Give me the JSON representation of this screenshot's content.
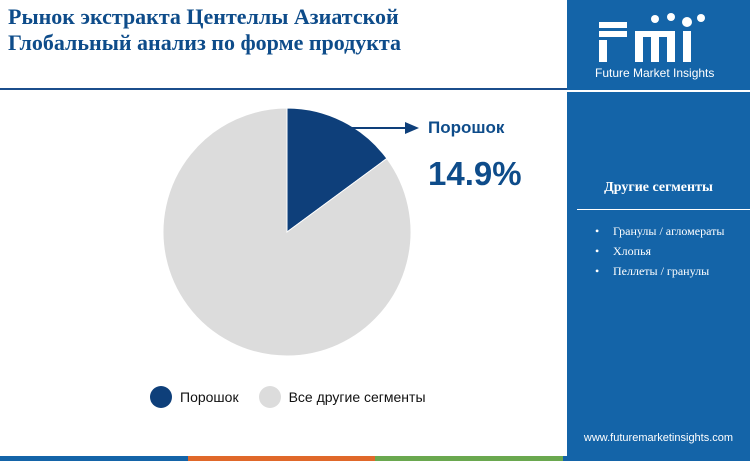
{
  "header": {
    "title_line1": "Рынок экстракта Центеллы Азиатской",
    "title_line2": "Глобальный анализ по форме продукта"
  },
  "sidebar": {
    "logo_text": "fmi",
    "logo_tagline": "Future Market Insights",
    "segments_title": "Другие сегменты",
    "segments": [
      "Гранулы / агломераты",
      "Хлопья",
      "Пеллеты / гранулы"
    ],
    "website": "www.futuremarketinsights.com"
  },
  "callout": {
    "label": "Порошок",
    "value": "14.9%"
  },
  "legend": {
    "items": [
      {
        "label": "Порошок",
        "color": "#0e3f7a"
      },
      {
        "label": "Все другие сегменты",
        "color": "#dcdcdc"
      }
    ]
  },
  "colors": {
    "title": "#0e4c8a",
    "sidebar": "#1464a8",
    "highlight_slice": "#0e3f7a",
    "other_slice": "#dcdcdc",
    "bottom_strip": [
      "#1464a8",
      "#e0682a",
      "#6aa84f",
      "#1464a8"
    ]
  },
  "chart_data": {
    "type": "pie",
    "slices": [
      {
        "label": "Порошок",
        "value": 14.9,
        "color": "#0e3f7a"
      },
      {
        "label": "Все другие сегменты",
        "value": 85.1,
        "color": "#dcdcdc"
      }
    ],
    "start_angle_deg": 0,
    "direction": "clockwise",
    "legend_position": "bottom"
  }
}
